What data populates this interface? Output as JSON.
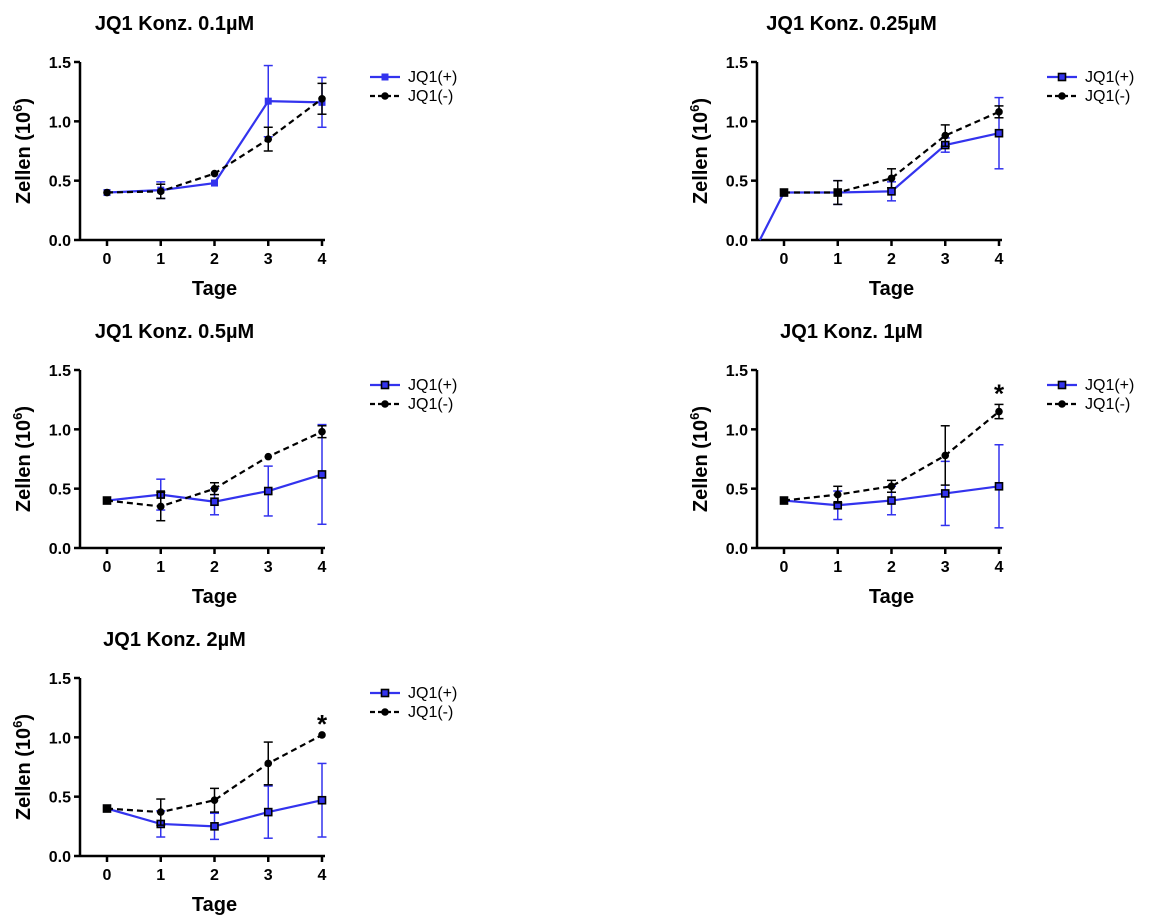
{
  "colors": {
    "plus": "#3333ee",
    "minus": "#000000"
  },
  "chart_data": [
    {
      "type": "line",
      "title": "JQ1 Konz. 0.1µM",
      "xlabel": "Tage",
      "ylabel": "Zellen (10",
      "ylabel_sup": "6",
      "ylabel_close": ")",
      "x": [
        0,
        1,
        2,
        3,
        4
      ],
      "xticks": [
        "0",
        "1",
        "2",
        "3",
        "4"
      ],
      "yticks": [
        "0.0",
        "0.5",
        "1.0",
        "1.5"
      ],
      "ylim": [
        0,
        1.5
      ],
      "legend_position": "right",
      "series": [
        {
          "name": "JQ1(+)",
          "values": [
            0.4,
            0.42,
            0.48,
            1.17,
            1.16
          ],
          "err": [
            0,
            0.07,
            0,
            0.3,
            0.21
          ],
          "marker": "square-filled",
          "line": "solid"
        },
        {
          "name": "JQ1(-)",
          "values": [
            0.4,
            0.41,
            0.56,
            0.85,
            1.19
          ],
          "err": [
            0,
            0.06,
            0,
            0.1,
            0.13
          ],
          "marker": "circle",
          "line": "dashed"
        }
      ],
      "annotation": ""
    },
    {
      "type": "line",
      "title": "JQ1 Konz. 0.25µM",
      "xlabel": "Tage",
      "ylabel": "Zellen (10",
      "ylabel_sup": "6",
      "ylabel_close": ")",
      "x": [
        0,
        1,
        2,
        3,
        4
      ],
      "xticks": [
        "0",
        "1",
        "2",
        "3",
        "4"
      ],
      "yticks": [
        "0.0",
        "0.5",
        "1.0",
        "1.5"
      ],
      "ylim": [
        0,
        1.5
      ],
      "legend_position": "right",
      "series": [
        {
          "name": "JQ1(+)",
          "values": [
            0.4,
            0.4,
            0.41,
            0.8,
            0.9
          ],
          "err": [
            0,
            0.1,
            0.08,
            0.06,
            0.3
          ],
          "marker": "square-open",
          "line": "solid",
          "lead": -0.45
        },
        {
          "name": "JQ1(-)",
          "values": [
            0.4,
            0.4,
            0.52,
            0.88,
            1.08
          ],
          "err": [
            0,
            0.1,
            0.08,
            0.09,
            0.05
          ],
          "marker": "circle",
          "line": "dashed"
        }
      ],
      "annotation": ""
    },
    {
      "type": "line",
      "title": "JQ1 Konz. 0.5µM",
      "xlabel": "Tage",
      "ylabel": "Zellen (10",
      "ylabel_sup": "6",
      "ylabel_close": ")",
      "x": [
        0,
        1,
        2,
        3,
        4
      ],
      "xticks": [
        "0",
        "1",
        "2",
        "3",
        "4"
      ],
      "yticks": [
        "0.0",
        "0.5",
        "1.0",
        "1.5"
      ],
      "ylim": [
        0,
        1.5
      ],
      "legend_position": "right",
      "series": [
        {
          "name": "JQ1(+)",
          "values": [
            0.4,
            0.45,
            0.39,
            0.48,
            0.62
          ],
          "err": [
            0,
            0.13,
            0.11,
            0.21,
            0.42
          ],
          "marker": "square-open",
          "line": "solid"
        },
        {
          "name": "JQ1(-)",
          "values": [
            0.4,
            0.35,
            0.5,
            0.77,
            0.98
          ],
          "err": [
            0,
            0.12,
            0.05,
            0,
            0.05
          ],
          "marker": "circle",
          "line": "dashed"
        }
      ],
      "annotation": ""
    },
    {
      "type": "line",
      "title": "JQ1 Konz. 1µM",
      "xlabel": "Tage",
      "ylabel": "Zellen (10",
      "ylabel_sup": "6",
      "ylabel_close": ")",
      "x": [
        0,
        1,
        2,
        3,
        4
      ],
      "xticks": [
        "0",
        "1",
        "2",
        "3",
        "4"
      ],
      "yticks": [
        "0.0",
        "0.5",
        "1.0",
        "1.5"
      ],
      "ylim": [
        0,
        1.5
      ],
      "legend_position": "right",
      "series": [
        {
          "name": "JQ1(+)",
          "values": [
            0.4,
            0.36,
            0.4,
            0.46,
            0.52
          ],
          "err": [
            0,
            0.12,
            0.12,
            0.27,
            0.35
          ],
          "marker": "square-open",
          "line": "solid"
        },
        {
          "name": "JQ1(-)",
          "values": [
            0.4,
            0.45,
            0.52,
            0.78,
            1.15
          ],
          "err": [
            0,
            0.07,
            0.05,
            0.25,
            0.06
          ],
          "marker": "circle",
          "line": "dashed"
        }
      ],
      "annotation": "*"
    },
    {
      "type": "line",
      "title": "JQ1 Konz. 2µM",
      "xlabel": "Tage",
      "ylabel": "Zellen (10",
      "ylabel_sup": "6",
      "ylabel_close": ")",
      "x": [
        0,
        1,
        2,
        3,
        4
      ],
      "xticks": [
        "0",
        "1",
        "2",
        "3",
        "4"
      ],
      "yticks": [
        "0.0",
        "0.5",
        "1.0",
        "1.5"
      ],
      "ylim": [
        0,
        1.5
      ],
      "legend_position": "right",
      "series": [
        {
          "name": "JQ1(+)",
          "values": [
            0.4,
            0.27,
            0.25,
            0.37,
            0.47
          ],
          "err": [
            0,
            0.11,
            0.11,
            0.22,
            0.31
          ],
          "marker": "square-open",
          "line": "solid"
        },
        {
          "name": "JQ1(-)",
          "values": [
            0.4,
            0.37,
            0.47,
            0.78,
            1.02
          ],
          "err": [
            0,
            0.11,
            0.1,
            0.18,
            0
          ],
          "marker": "circle",
          "line": "dashed"
        }
      ],
      "annotation": "*"
    }
  ]
}
